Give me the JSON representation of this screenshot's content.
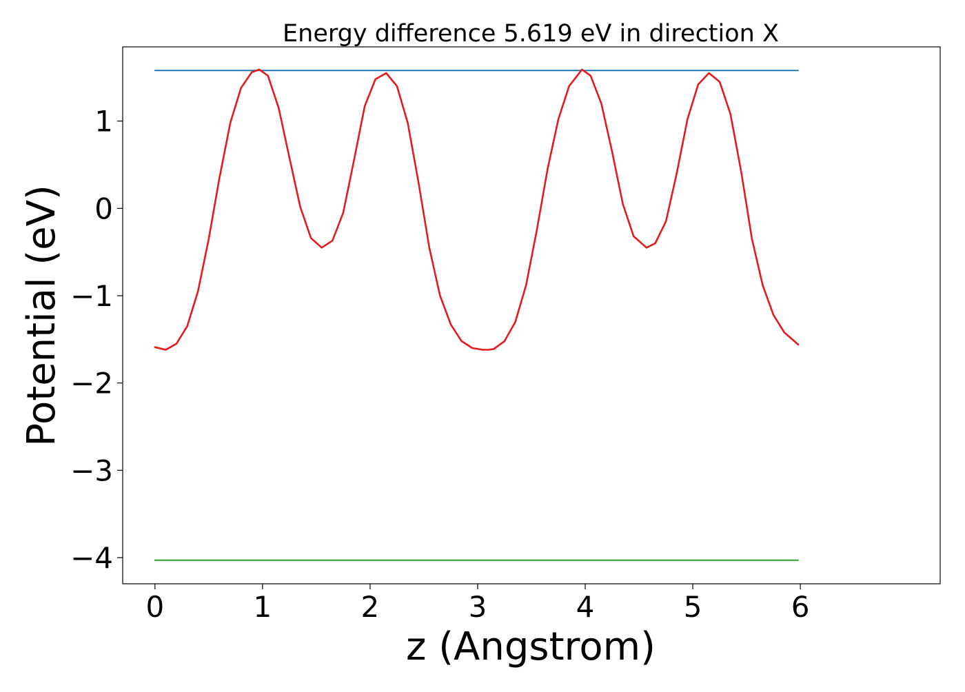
{
  "chart_data": {
    "type": "line",
    "title": "Energy difference 5.619 eV in direction X",
    "xlabel": "z (Angstrom)",
    "ylabel": "Potential (eV)",
    "xlim": [
      -0.3,
      7.3
    ],
    "ylim": [
      -4.3,
      1.85
    ],
    "xticks": [
      0,
      1,
      2,
      3,
      4,
      5,
      6
    ],
    "xtick_labels": [
      "0",
      "1",
      "2",
      "3",
      "4",
      "5",
      "6"
    ],
    "yticks": [
      1,
      0,
      -1,
      -2,
      -3,
      -4
    ],
    "ytick_labels": [
      "1",
      "0",
      "−1",
      "−2",
      "−3",
      "−4"
    ],
    "grid": false,
    "legend": "none",
    "series": [
      {
        "color": "#1f77b4",
        "x": [
          0,
          5.98
        ],
        "y": [
          1.58,
          1.58
        ]
      },
      {
        "color": "#2ca02c",
        "x": [
          0,
          5.98
        ],
        "y": [
          -4.03,
          -4.03
        ]
      },
      {
        "color": "#e41a1c",
        "x": [
          0,
          0.1,
          0.2,
          0.3,
          0.4,
          0.5,
          0.6,
          0.7,
          0.8,
          0.9,
          0.97,
          1.05,
          1.15,
          1.25,
          1.35,
          1.45,
          1.55,
          1.65,
          1.75,
          1.85,
          1.95,
          2.05,
          2.15,
          2.25,
          2.35,
          2.45,
          2.55,
          2.65,
          2.75,
          2.85,
          2.95,
          3.05,
          3.1,
          3.15,
          3.25,
          3.35,
          3.45,
          3.55,
          3.65,
          3.75,
          3.85,
          3.97,
          4.05,
          4.15,
          4.25,
          4.35,
          4.45,
          4.57,
          4.65,
          4.75,
          4.85,
          4.95,
          5.05,
          5.15,
          5.25,
          5.35,
          5.45,
          5.55,
          5.65,
          5.75,
          5.85,
          5.98
        ],
        "y": [
          -1.59,
          -1.62,
          -1.55,
          -1.35,
          -0.95,
          -0.35,
          0.35,
          0.98,
          1.38,
          1.56,
          1.59,
          1.52,
          1.15,
          0.58,
          0.02,
          -0.34,
          -0.45,
          -0.37,
          -0.05,
          0.55,
          1.17,
          1.48,
          1.55,
          1.4,
          0.98,
          0.3,
          -0.45,
          -1.0,
          -1.33,
          -1.52,
          -1.6,
          -1.62,
          -1.62,
          -1.61,
          -1.52,
          -1.3,
          -0.88,
          -0.25,
          0.45,
          1.02,
          1.4,
          1.59,
          1.52,
          1.2,
          0.65,
          0.05,
          -0.32,
          -0.45,
          -0.4,
          -0.15,
          0.4,
          1.02,
          1.42,
          1.55,
          1.45,
          1.08,
          0.42,
          -0.35,
          -0.88,
          -1.22,
          -1.42,
          -1.56
        ]
      }
    ]
  }
}
